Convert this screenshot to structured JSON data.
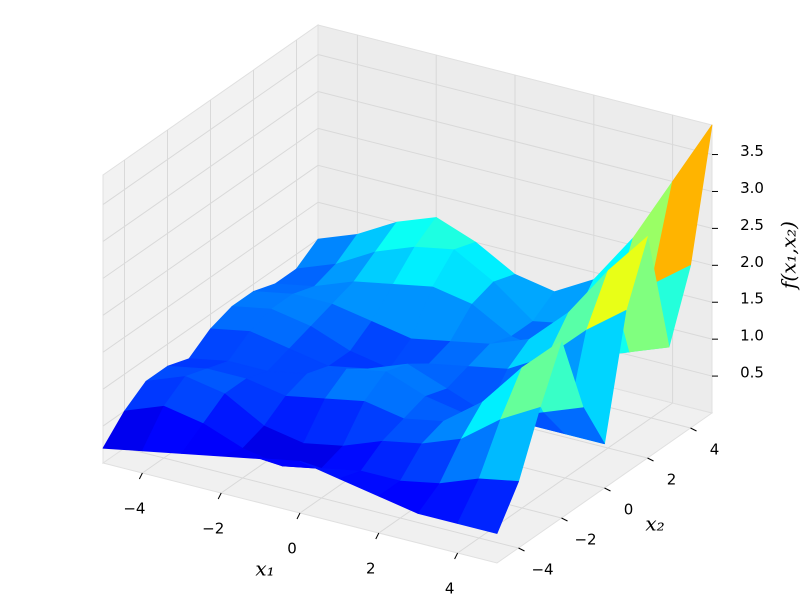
{
  "chart_data": {
    "type": "surface",
    "x": [
      -5,
      -4,
      -3,
      -2,
      -1,
      0,
      1,
      2,
      3,
      4,
      5
    ],
    "y": [
      -5,
      -4,
      -3,
      -2,
      -1,
      0,
      1,
      2,
      3,
      4,
      5
    ],
    "z": [
      [
        0.2,
        0.3,
        0.4,
        0.5,
        0.6,
        0.7,
        0.6,
        0.5,
        0.4,
        0.4,
        0.4
      ],
      [
        0.5,
        0.7,
        0.6,
        0.4,
        0.3,
        0.4,
        0.5,
        0.5,
        0.6,
        0.8,
        0.9
      ],
      [
        0.7,
        0.9,
        0.8,
        0.5,
        0.4,
        0.5,
        0.7,
        0.8,
        1.0,
        1.4,
        1.7
      ],
      [
        0.7,
        0.8,
        0.8,
        0.7,
        0.8,
        0.9,
        0.8,
        0.9,
        1.3,
        1.9,
        2.4
      ],
      [
        0.6,
        0.7,
        0.7,
        0.8,
        1.0,
        1.1,
        0.9,
        0.8,
        0.9,
        1.1,
        1.3
      ],
      [
        0.8,
        0.9,
        0.8,
        0.7,
        0.8,
        1.0,
        0.8,
        0.6,
        0.6,
        0.6,
        0.6
      ],
      [
        0.9,
        1.0,
        0.9,
        0.7,
        0.6,
        0.8,
        0.9,
        1.0,
        1.3,
        1.8,
        2.2
      ],
      [
        0.9,
        1.0,
        1.0,
        0.9,
        0.8,
        0.9,
        1.0,
        1.2,
        1.7,
        2.4,
        3.0
      ],
      [
        0.8,
        0.9,
        1.1,
        1.2,
        1.3,
        1.2,
        0.9,
        0.8,
        0.9,
        1.1,
        1.3
      ],
      [
        0.8,
        1.0,
        1.3,
        1.5,
        1.6,
        1.3,
        0.9,
        1.0,
        1.3,
        1.8,
        2.2
      ],
      [
        1.0,
        1.2,
        1.5,
        1.7,
        1.5,
        1.2,
        1.1,
        1.4,
        2.1,
        3.0,
        3.9
      ]
    ],
    "xlim": [
      -5,
      5
    ],
    "ylim": [
      -5,
      5
    ],
    "zlim": [
      0,
      3.9
    ],
    "xticks": [
      {
        "value": -4,
        "label": "−4"
      },
      {
        "value": -2,
        "label": "−2"
      },
      0,
      2,
      4
    ],
    "yticks": [
      {
        "value": -4,
        "label": "−4"
      },
      {
        "value": -2,
        "label": "−2"
      },
      0,
      2,
      4
    ],
    "zticks": [
      0.5,
      {
        "value": 1,
        "label": "1.0"
      },
      1.5,
      {
        "value": 2,
        "label": "2.0"
      },
      2.5,
      {
        "value": 3,
        "label": "3.0"
      },
      3.5
    ],
    "xlabel": "x₁",
    "ylabel": "x₂",
    "zlabel": "f(x₁,x₂)",
    "colormap": "jet",
    "grid": true
  }
}
